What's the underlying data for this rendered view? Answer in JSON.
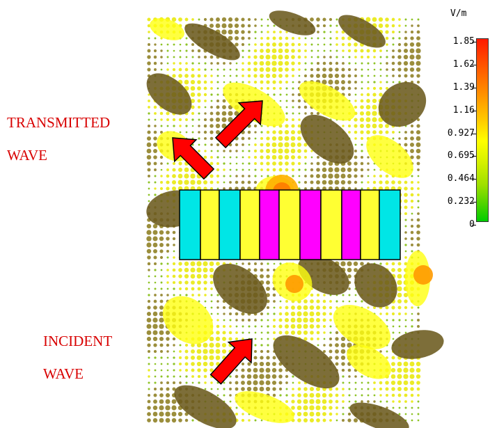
{
  "labels": {
    "transmitted_line1": "TRANSMITTED",
    "transmitted_line2": "WAVE",
    "incident_line1": "INCIDENT",
    "incident_line2": "WAVE"
  },
  "colorbar": {
    "unit": "V/m",
    "ticks": [
      "1.85",
      "1.62",
      "1.39",
      "1.16",
      "0.927",
      "0.695",
      "0.464",
      "0.232",
      "0"
    ],
    "colors": [
      "#ff1a00",
      "#ff5a00",
      "#ff9000",
      "#ffc800",
      "#ffff00",
      "#d4f000",
      "#9ee000",
      "#52d400",
      "#00cc00"
    ]
  },
  "colors": {
    "arrow_fill": "#ff0000",
    "arrow_stroke": "#000000",
    "label_text": "#d80000",
    "dark_blob": "#6b5a1e",
    "bright_blob": "#ffff10",
    "cyan_block": "#00e6e6",
    "magenta_block": "#ff00ff",
    "yellow_block": "#ffff33"
  }
}
